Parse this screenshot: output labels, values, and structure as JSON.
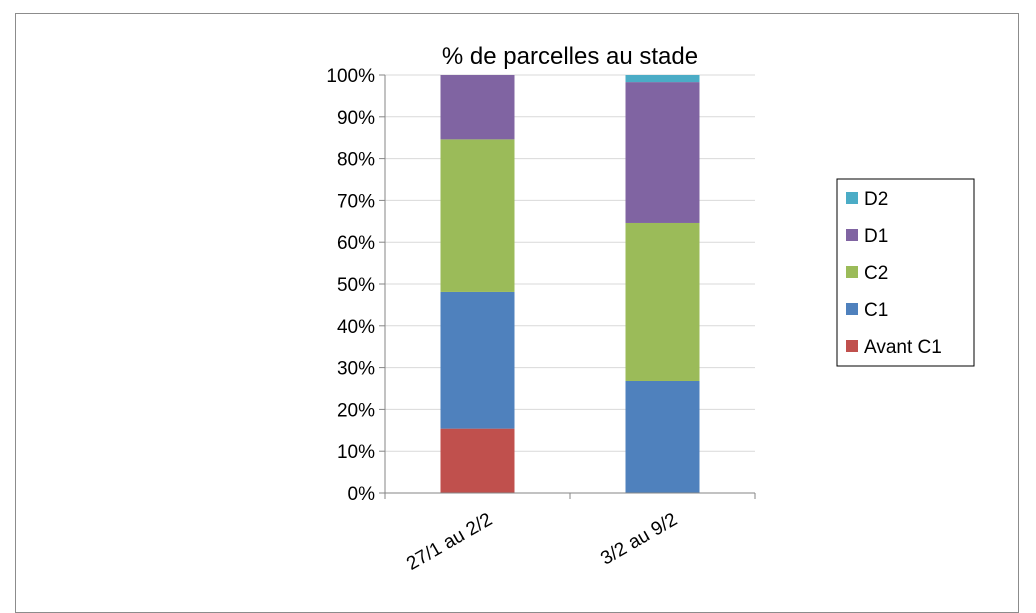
{
  "chart_data": {
    "type": "bar",
    "stacked": true,
    "percent": true,
    "title": "% de parcelles au stade",
    "xlabel": "",
    "ylabel": "",
    "ylim": [
      0,
      100
    ],
    "y_ticks": [
      "0%",
      "10%",
      "20%",
      "30%",
      "40%",
      "50%",
      "60%",
      "70%",
      "80%",
      "90%",
      "100%"
    ],
    "categories": [
      "27/1 au 2/2",
      "3/2 au 9/2"
    ],
    "series": [
      {
        "name": "Avant C1",
        "color": "#c0504d",
        "values": [
          15.4,
          0
        ]
      },
      {
        "name": "C1",
        "color": "#4f81bd",
        "values": [
          32.7,
          26.8
        ]
      },
      {
        "name": "C2",
        "color": "#9bbb59",
        "values": [
          36.5,
          37.8
        ]
      },
      {
        "name": "D1",
        "color": "#8064a2",
        "values": [
          15.4,
          33.7
        ]
      },
      {
        "name": "D2",
        "color": "#4bacc6",
        "values": [
          0,
          1.7
        ]
      }
    ],
    "legend": {
      "position": "right",
      "order": [
        "D2",
        "D1",
        "C2",
        "C1",
        "Avant C1"
      ]
    },
    "grid": true
  }
}
